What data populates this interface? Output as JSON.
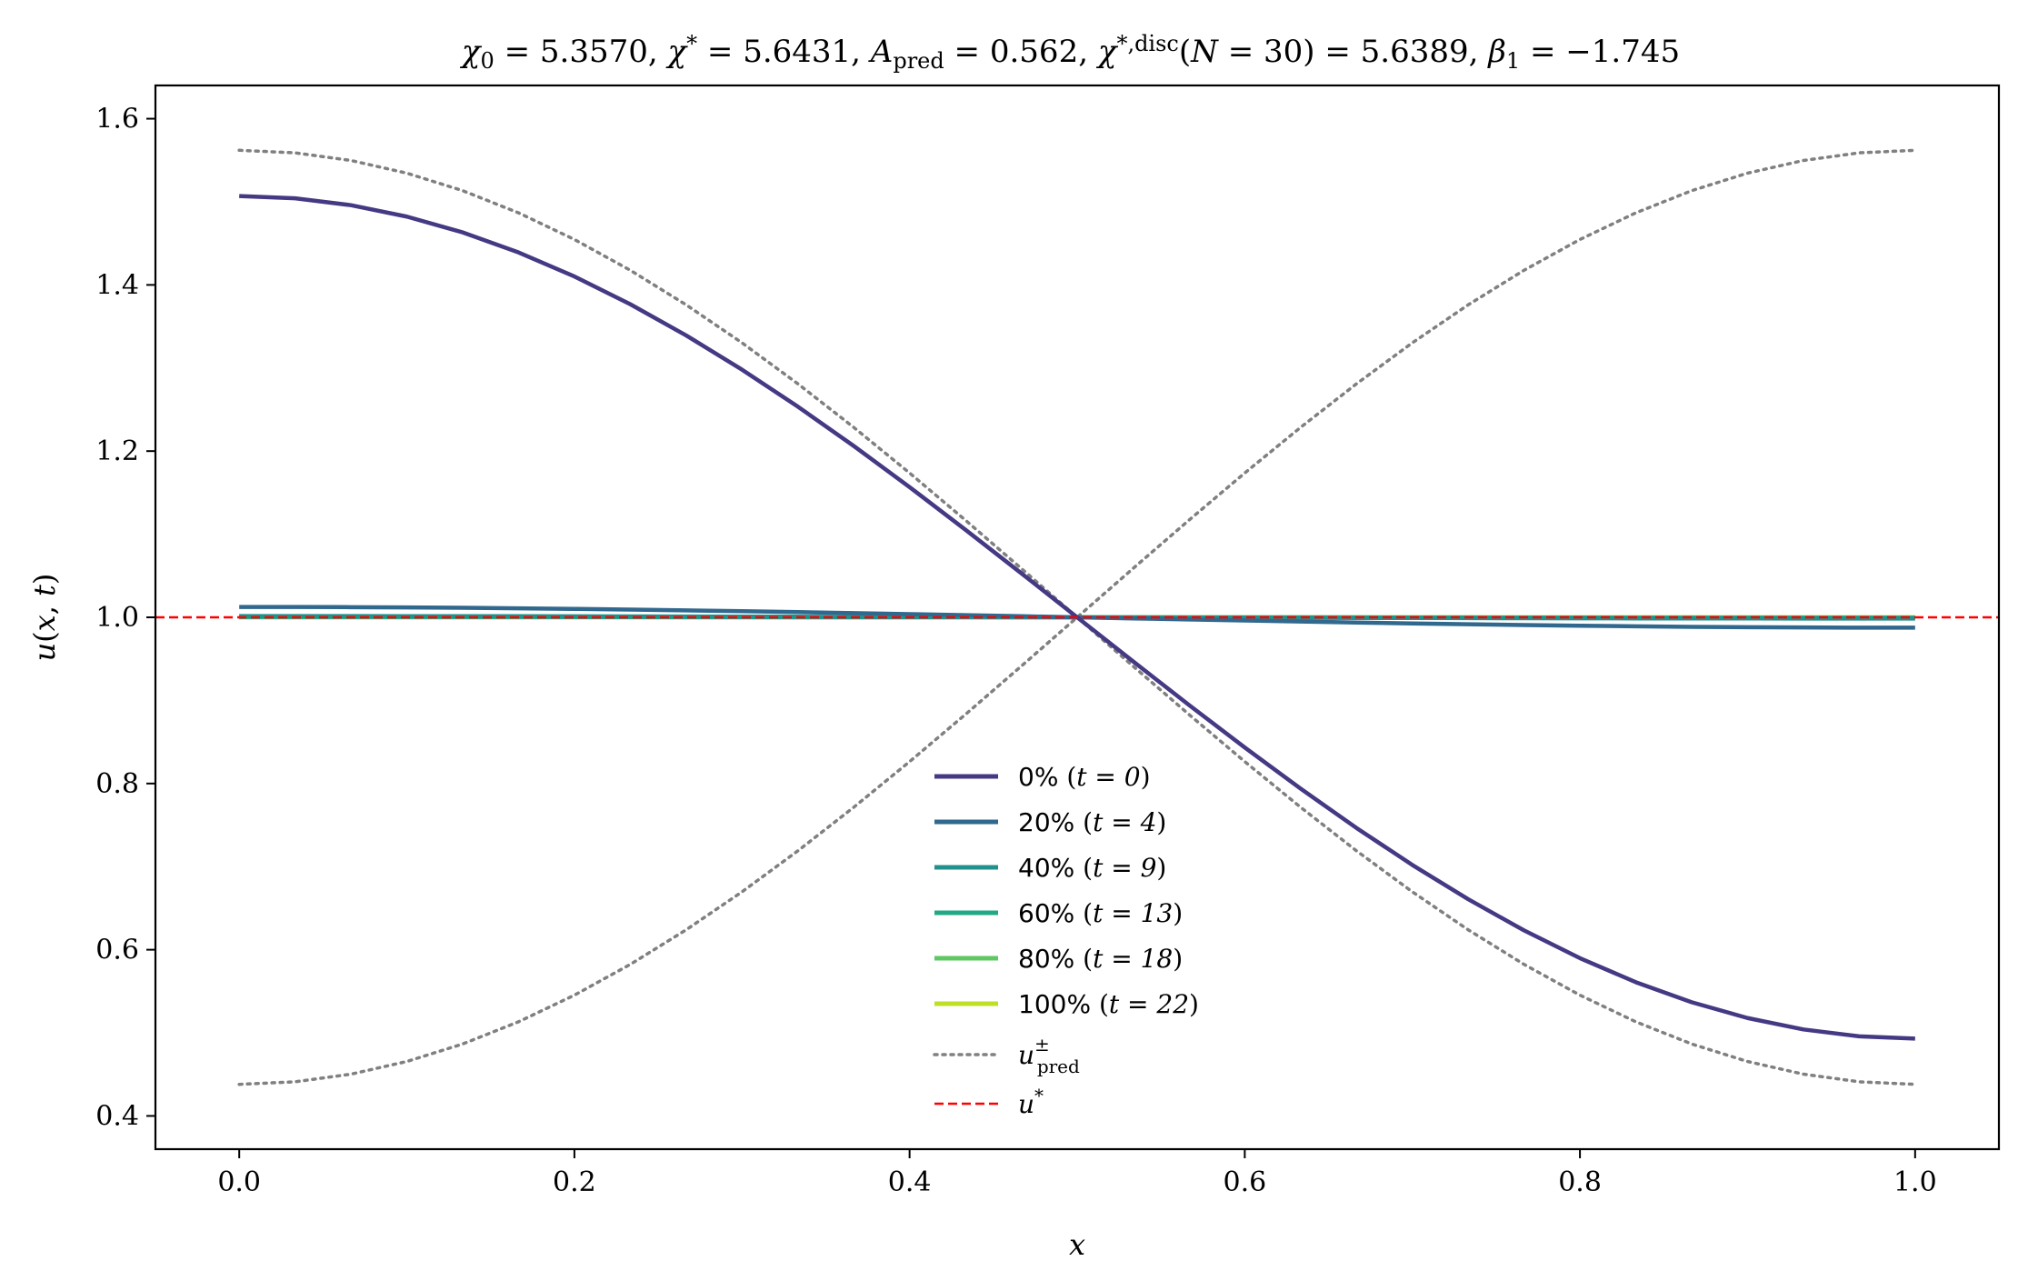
{
  "chart_data": {
    "type": "line",
    "title": "χ₀ = 5.3570,  χ* = 5.6431,  A_pred = 0.562,  χ*,disc(N = 30) = 5.6389,  β₁ = −1.745",
    "title_parts": {
      "chi0": "5.3570",
      "chi_star": "5.6431",
      "A_pred": "0.562",
      "N": "30",
      "chi_star_disc": "5.6389",
      "beta1": "−1.745"
    },
    "xlabel": "x",
    "ylabel": "u(x, t)",
    "xlim": [
      -0.05,
      1.05
    ],
    "ylim": [
      0.36,
      1.64
    ],
    "xticks": [
      0.0,
      0.2,
      0.4,
      0.6,
      0.8,
      1.0
    ],
    "xtick_labels": [
      "0.0",
      "0.2",
      "0.4",
      "0.6",
      "0.8",
      "1.0"
    ],
    "yticks": [
      0.4,
      0.6,
      0.8,
      1.0,
      1.2,
      1.4,
      1.6
    ],
    "ytick_labels": [
      "0.4",
      "0.6",
      "0.8",
      "1.0",
      "1.2",
      "1.4",
      "1.6"
    ],
    "grid": false,
    "legend_position": "lower-center",
    "series": [
      {
        "name": "0% (t = 0)",
        "label_pct": "0%",
        "label_t": "t = 0",
        "color": "#443983",
        "style": "solid",
        "amplitude": 0.507
      },
      {
        "name": "20% (t = 4)",
        "label_pct": "20%",
        "label_t": "t = 4",
        "color": "#31688e",
        "style": "solid",
        "amplitude": 0.0125
      },
      {
        "name": "40% (t = 9)",
        "label_pct": "40%",
        "label_t": "t = 9",
        "color": "#21918c",
        "style": "solid",
        "amplitude": 0.0015
      },
      {
        "name": "60% (t = 13)",
        "label_pct": "60%",
        "label_t": "t = 13",
        "color": "#22a884",
        "style": "solid",
        "amplitude": 0.0004
      },
      {
        "name": "80% (t = 18)",
        "label_pct": "80%",
        "label_t": "t = 18",
        "color": "#5ec962",
        "style": "solid",
        "amplitude": 0.0001
      },
      {
        "name": "100% (t = 22)",
        "label_pct": "100%",
        "label_t": "t = 22",
        "color": "#bddf26",
        "style": "solid",
        "amplitude": 0.0
      },
      {
        "name": "u±pred",
        "label_base": "u",
        "label_sup": "±",
        "label_sub": "pred",
        "color": "#808080",
        "style": "dotted",
        "amplitude": 0.562
      },
      {
        "name": "u*",
        "label_base": "u",
        "label_sup": "*",
        "color": "#ff0000",
        "style": "dashed",
        "value": 1.0
      }
    ],
    "x_samples": 31
  }
}
